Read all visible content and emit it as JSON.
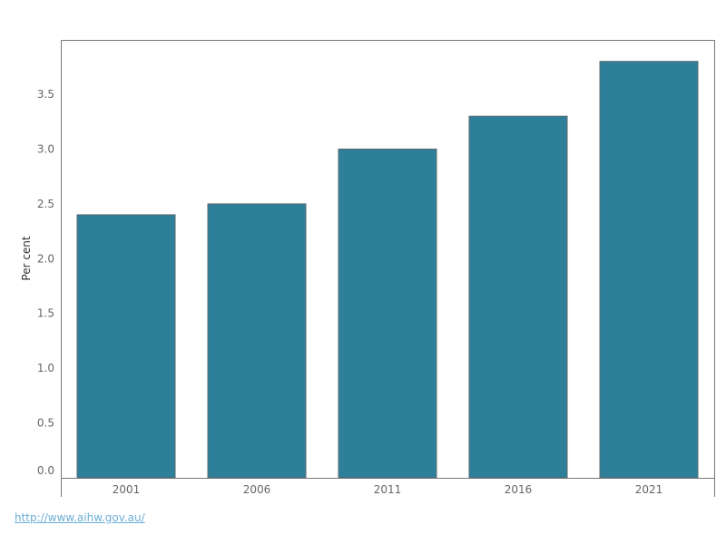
{
  "chart_data": {
    "type": "bar",
    "categories": [
      "2001",
      "2006",
      "2011",
      "2016",
      "2021"
    ],
    "values": [
      2.4,
      2.5,
      3.0,
      3.3,
      3.8
    ],
    "title": "",
    "xlabel": "",
    "ylabel": "Per cent",
    "ylim": [
      0,
      3.95
    ],
    "yticks": [
      0.0,
      0.5,
      1.0,
      1.5,
      2.0,
      2.5,
      3.0,
      3.5
    ],
    "ytick_labels": [
      "0.0",
      "0.5",
      "1.0",
      "1.5",
      "2.0",
      "2.5",
      "3.0",
      "3.5"
    ],
    "grid": false,
    "bar_color": "#2e7f99"
  },
  "footer": {
    "source_link": "http://www.aihw.gov.au/"
  }
}
